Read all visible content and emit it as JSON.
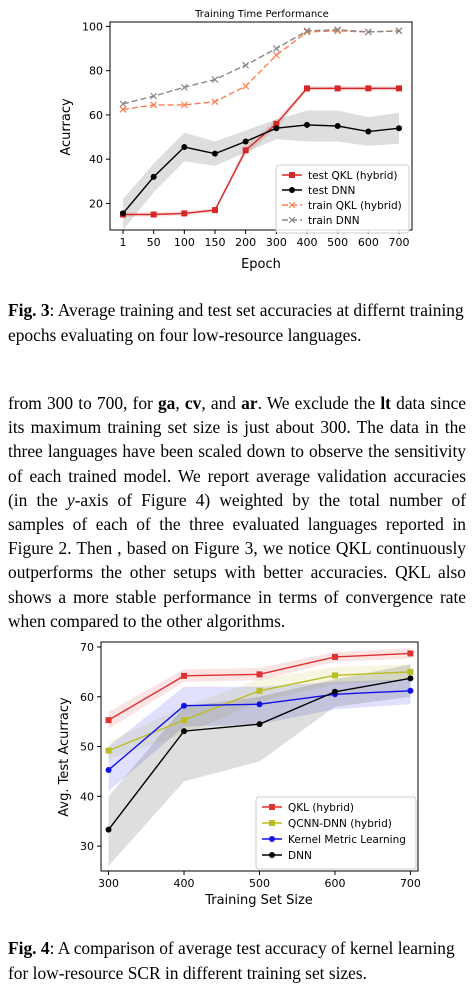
{
  "figure3": {
    "caption_label": "Fig. 3",
    "caption_text": ":  Average training and test set accuracies at differnt training epochs evaluating on four low-resource languages."
  },
  "figure4": {
    "caption_label": "Fig. 4",
    "caption_text": ": A comparison of average test accuracy of kernel learning for low-resource SCR in different training set sizes."
  },
  "body_text": {
    "p1": "from 300 to 700, for ",
    "ga": "ga",
    "s1": ", ",
    "cv": "cv",
    "s2": ", and ",
    "ar": "ar",
    "p2": ". We exclude the ",
    "lt": "lt",
    "p3": " data since its maximum training set size is just about 300. The data in the three languages have been scaled down to observe the sensitivity of each trained model. We report average validation accuracies (in the ",
    "yaxis": "y",
    "p4": "-axis of Figure 4) weighted by the total number of samples of each of the three evaluated languages reported in Figure 2. Then , based on Figure 3, we notice QKL continuously outperforms the other setups with better accuracies. QKL also shows a more stable performance in terms of convergence rate when compared to the other algorithms."
  },
  "chart_data": [
    {
      "type": "line",
      "title": "Training Time Performance",
      "xlabel": "Epoch",
      "ylabel": "Acurracy",
      "categories": [
        "1",
        "50",
        "100",
        "150",
        "200",
        "300",
        "400",
        "500",
        "600",
        "700"
      ],
      "ylim": [
        8,
        102
      ],
      "yticks": [
        20,
        40,
        60,
        80,
        100
      ],
      "legend_position": "lower-right",
      "grid": false,
      "series": [
        {
          "name": "test QKL (hybrid)",
          "color": "#d62728",
          "marker": "square",
          "dash": "",
          "values": [
            15,
            15,
            15.5,
            17,
            44,
            56,
            72,
            72,
            72,
            72
          ],
          "band_low": [
            14,
            14,
            14.5,
            16,
            42,
            54,
            71,
            71,
            71,
            71
          ],
          "band_high": [
            16,
            16,
            16.5,
            18,
            46,
            58,
            73,
            73,
            73,
            73
          ]
        },
        {
          "name": "test DNN",
          "color": "#000000",
          "marker": "circle",
          "dash": "",
          "values": [
            15.5,
            32,
            45.5,
            42.5,
            48,
            54,
            55.5,
            55,
            52.5,
            54
          ],
          "band_low": [
            8,
            25,
            39,
            37,
            43,
            49,
            48,
            48,
            46,
            47
          ],
          "band_high": [
            22,
            38,
            52,
            48,
            53,
            58,
            62,
            62,
            59,
            61
          ]
        },
        {
          "name": "train QKL (hybrid)",
          "color": "#ff7f50",
          "marker": "x",
          "dash": "6,3",
          "values": [
            62.5,
            64.5,
            64.5,
            66,
            73,
            87,
            97.5,
            98,
            97.5,
            98
          ]
        },
        {
          "name": "train DNN",
          "color": "#888888",
          "marker": "x",
          "dash": "6,3",
          "values": [
            65,
            68.5,
            72.5,
            76,
            82.5,
            90,
            98,
            98.5,
            97.5,
            98
          ]
        }
      ]
    },
    {
      "type": "line",
      "title": "",
      "xlabel": "Training Set Size",
      "ylabel": "Avg. Test Acurracy",
      "x": [
        300,
        400,
        500,
        600,
        700
      ],
      "xlim": [
        290,
        710
      ],
      "ylim": [
        25,
        71
      ],
      "yticks": [
        30,
        40,
        50,
        60,
        70
      ],
      "legend_position": "lower-right",
      "grid": false,
      "series": [
        {
          "name": "QKL (hybrid)",
          "color": "#e03030",
          "marker": "square",
          "values": [
            55.3,
            64.2,
            64.5,
            68,
            68.7
          ],
          "band_low": [
            53.5,
            63,
            63.3,
            67,
            67.7
          ],
          "band_high": [
            57,
            65.5,
            65.8,
            69,
            69.8
          ]
        },
        {
          "name": "QCNN-DNN (hybrid)",
          "color": "#bcbd22",
          "marker": "square",
          "values": [
            49.2,
            55.3,
            61.2,
            64.3,
            65
          ],
          "band_low": [
            47.5,
            52.5,
            59,
            62.5,
            63.5
          ],
          "band_high": [
            51,
            58,
            63.5,
            66,
            66.5
          ]
        },
        {
          "name": "Kernel Metric Learning",
          "color": "#1010e8",
          "marker": "circle",
          "values": [
            45.3,
            58.2,
            58.5,
            60.5,
            61.2
          ],
          "band_low": [
            41,
            54,
            54.5,
            57.5,
            58.5
          ],
          "band_high": [
            50,
            62,
            62,
            63,
            63.5
          ]
        },
        {
          "name": "DNN",
          "color": "#000000",
          "marker": "circle",
          "values": [
            33.3,
            53.1,
            54.5,
            61,
            63.7
          ],
          "band_low": [
            26,
            43,
            47,
            58,
            60
          ],
          "band_high": [
            40,
            58,
            60,
            63.5,
            66.5
          ]
        }
      ]
    }
  ]
}
